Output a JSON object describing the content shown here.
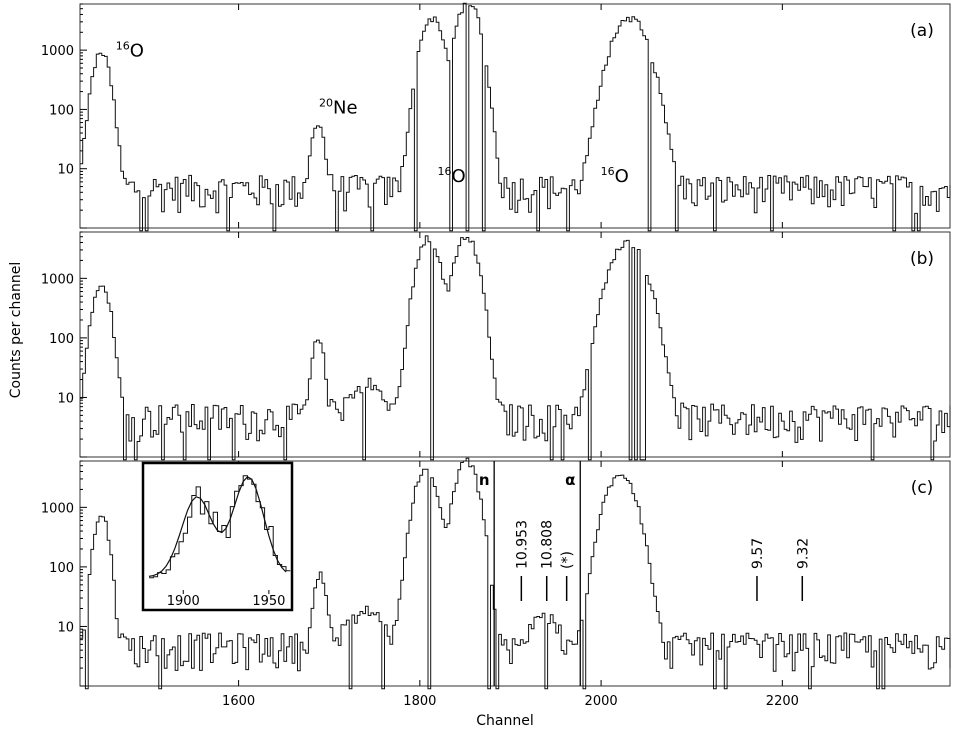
{
  "chart_data": {
    "type": "line",
    "xlabel": "Channel",
    "ylabel": "Counts per channel",
    "xlim": [
      1425,
      2385
    ],
    "ylim": [
      1,
      6000
    ],
    "yscale": "log",
    "x_ticks": [
      1600,
      1800,
      2000,
      2200
    ],
    "y_ticks": [
      10,
      100,
      1000
    ],
    "panels": [
      {
        "label": "(a)",
        "annotations": [
          {
            "mass": "16",
            "element": "O",
            "x": 1480,
            "y": 780
          },
          {
            "mass": "20",
            "element": "Ne",
            "x": 1710,
            "y": 85
          },
          {
            "mass": "16",
            "element": "O",
            "x": 1835,
            "y": 6
          },
          {
            "mass": "16",
            "element": "O",
            "x": 2015,
            "y": 6
          }
        ],
        "spectrum": {
          "baseline": 5,
          "peaks": [
            [
              1447,
              900,
              7
            ],
            [
              1686,
              55,
              5
            ],
            [
              1812,
              3500,
              9
            ],
            [
              1852,
              6500,
              9
            ],
            [
              2030,
              3500,
              14
            ]
          ]
        }
      },
      {
        "label": "(b)",
        "annotations": [],
        "spectrum": {
          "baseline": 5,
          "peaks": [
            [
              1447,
              850,
              7
            ],
            [
              1686,
              90,
              5
            ],
            [
              1740,
              12,
              15
            ],
            [
              1808,
              4800,
              9
            ],
            [
              1850,
              5200,
              9
            ],
            [
              2028,
              4000,
              14
            ]
          ]
        }
      },
      {
        "label": "(c)",
        "gate_lines": [
          {
            "x": 1882,
            "label": "n"
          },
          {
            "x": 1977,
            "label": "α"
          }
        ],
        "energy_markers": [
          {
            "x": 1912,
            "label": "10.953"
          },
          {
            "x": 1940,
            "label": "10.808"
          },
          {
            "x": 1962,
            "label": "(*)"
          },
          {
            "x": 2172,
            "label": "9.57"
          },
          {
            "x": 2222,
            "label": "9.32"
          }
        ],
        "spectrum": {
          "baseline": 5,
          "peaks": [
            [
              1447,
              750,
              6
            ],
            [
              1688,
              70,
              5
            ],
            [
              1740,
              14,
              15
            ],
            [
              1805,
              4200,
              9
            ],
            [
              1850,
              6000,
              9
            ],
            [
              1935,
              12,
              10
            ],
            [
              2020,
              3800,
              12
            ]
          ]
        },
        "inset": {
          "xlim": [
            1880,
            1960
          ],
          "x_ticks": [
            1900,
            1950
          ],
          "peaks": [
            [
              1908,
              1.0,
              9
            ],
            [
              1938,
              1.25,
              9
            ]
          ]
        }
      }
    ]
  }
}
